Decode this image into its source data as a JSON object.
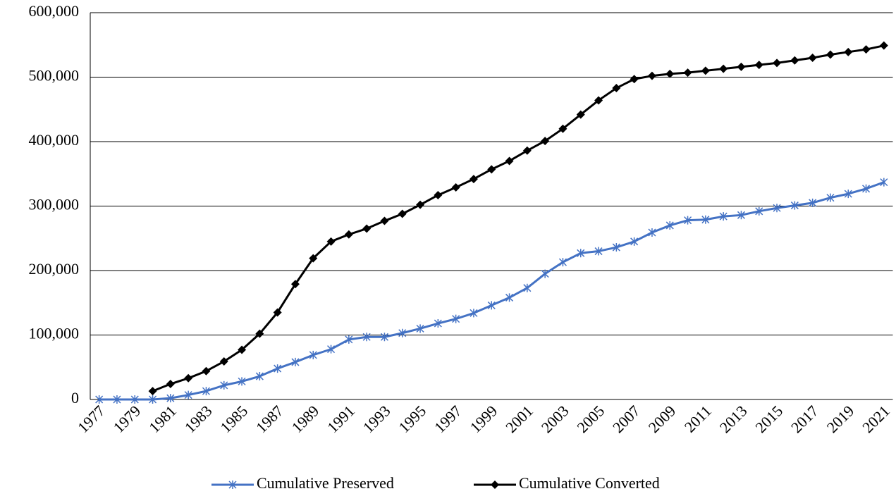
{
  "chart_data": {
    "type": "line",
    "categories": [
      "1977",
      null,
      "1979",
      null,
      "1981",
      null,
      "1983",
      null,
      "1985",
      null,
      "1987",
      null,
      "1989",
      null,
      "1991",
      null,
      "1993",
      null,
      "1995",
      null,
      "1997",
      null,
      "1999",
      null,
      "2001",
      null,
      "2003",
      null,
      "2005",
      null,
      "2007",
      null,
      "2009",
      null,
      "2011",
      null,
      "2013",
      null,
      "2015",
      null,
      "2017",
      null,
      "2019",
      null,
      "2021"
    ],
    "series": [
      {
        "name": "Cumulative Preserved",
        "color": "#4472c4",
        "marker": "asterisk",
        "values": [
          0,
          0,
          0,
          0,
          2000,
          7000,
          13000,
          22000,
          28000,
          36000,
          48000,
          58000,
          69000,
          78000,
          93000,
          97000,
          97000,
          103000,
          110000,
          118000,
          125000,
          134000,
          146000,
          158000,
          173000,
          195000,
          213000,
          227000,
          230000,
          236000,
          245000,
          259000,
          270000,
          278000,
          279000,
          284000,
          286000,
          292000,
          297000,
          301000,
          305000,
          313000,
          319000,
          327000,
          337000
        ]
      },
      {
        "name": "Cumulative Converted",
        "color": "#000000",
        "marker": "diamond",
        "values": [
          null,
          null,
          null,
          13000,
          24000,
          33000,
          44000,
          59000,
          77000,
          102000,
          135000,
          179000,
          219000,
          245000,
          256000,
          265000,
          277000,
          288000,
          302000,
          317000,
          329000,
          342000,
          357000,
          370000,
          386000,
          401000,
          420000,
          442000,
          464000,
          483000,
          497000,
          502000,
          505000,
          507000,
          510000,
          513000,
          516000,
          519000,
          522000,
          526000,
          530000,
          535000,
          539000,
          543000,
          549000
        ]
      }
    ],
    "ylim": [
      0,
      600000
    ],
    "yticks": [
      0,
      {
        "value": 100000,
        "label": "100,000"
      },
      {
        "value": 200000,
        "label": "200,000"
      },
      {
        "value": 300000,
        "label": "300,000"
      },
      {
        "value": 400000,
        "label": "400,000"
      },
      {
        "value": 500000,
        "label": "500,000"
      },
      {
        "value": 600000,
        "label": "600,000"
      }
    ],
    "grid": true,
    "legend": "bottom"
  }
}
